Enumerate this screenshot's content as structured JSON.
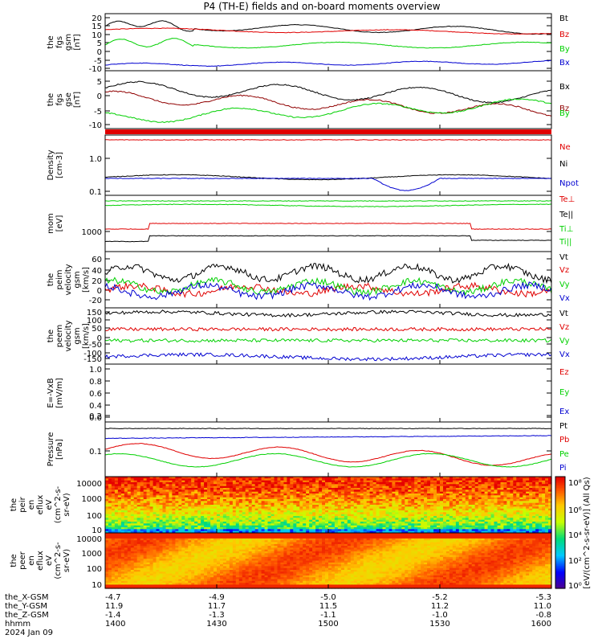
{
  "title": "P4 (TH-E) fields and on-board moments overview",
  "colors": {
    "black": "#000000",
    "red": "#e00000",
    "green": "#00d000",
    "blue": "#0000d0",
    "darkred": "#900000"
  },
  "chart_data": [
    {
      "id": "fgs-gsm",
      "type": "line",
      "ylabel": [
        "the",
        "fgs",
        "gsm",
        "[nT]"
      ],
      "yticks": [
        "20",
        "15",
        "10",
        "5",
        "0",
        "-5",
        "-10"
      ],
      "ylim": [
        -12,
        22
      ],
      "series": [
        {
          "name": "Bt",
          "color": "#000000",
          "base": 15,
          "amp": 3
        },
        {
          "name": "Bz",
          "color": "#e00000",
          "base": 12,
          "amp": 2
        },
        {
          "name": "By",
          "color": "#00d000",
          "base": 3,
          "amp": 3
        },
        {
          "name": "Bx",
          "color": "#0000d0",
          "base": -9,
          "amp": 1.5
        }
      ]
    },
    {
      "id": "fgs-gse",
      "type": "line",
      "ylabel": [
        "the",
        "fgs",
        "gse",
        "[nT]"
      ],
      "yticks": [
        "5",
        "0",
        "-5",
        "-10"
      ],
      "ylim": [
        -13,
        10
      ],
      "series": [
        {
          "name": "Bx",
          "color": "#000000",
          "base": 2,
          "amp": 4
        },
        {
          "name": "Bz",
          "color": "#900000",
          "base": -1,
          "amp": 3
        },
        {
          "name": "By",
          "color": "#00d000",
          "base": -8,
          "amp": 3
        }
      ]
    },
    {
      "id": "density",
      "type": "line",
      "ylabel": [
        "Density",
        "[cm-3]"
      ],
      "yticks": [
        "1.0",
        "0.1"
      ],
      "series": [
        {
          "name": "Ne",
          "color": "#e00000"
        },
        {
          "name": "Ni",
          "color": "#000000"
        },
        {
          "name": "Npot",
          "color": "#0000d0"
        }
      ]
    },
    {
      "id": "temperature",
      "type": "line",
      "ylabel": [
        "mom",
        "[eV]"
      ],
      "yticks": [
        "1000"
      ],
      "series": [
        {
          "name": "Te⊥",
          "color": "#e00000"
        },
        {
          "name": "Te||",
          "color": "#000000"
        },
        {
          "name": "Ti⊥",
          "color": "#00d000"
        },
        {
          "name": "Ti||",
          "color": "#00d000"
        }
      ]
    },
    {
      "id": "ion-velocity",
      "type": "line",
      "ylabel": [
        "the",
        "peim",
        "velocity",
        "gsm",
        "[km/s]"
      ],
      "yticks": [
        "60",
        "40",
        "20",
        "0",
        "-20"
      ],
      "ylim": [
        -25,
        70
      ],
      "series": [
        {
          "name": "Vt",
          "color": "#000000",
          "base": 35,
          "amp": 15
        },
        {
          "name": "Vz",
          "color": "#e00000",
          "base": 10,
          "amp": 10
        },
        {
          "name": "Vy",
          "color": "#00d000",
          "base": 12,
          "amp": 12
        },
        {
          "name": "Vx",
          "color": "#0000d0",
          "base": 8,
          "amp": 10
        }
      ]
    },
    {
      "id": "electron-velocity",
      "type": "line",
      "ylabel": [
        "the",
        "peem",
        "velocity",
        "gsm",
        "[km/s]"
      ],
      "yticks": [
        "150",
        "100",
        "50",
        "0",
        "-50",
        "-100",
        "-150"
      ],
      "ylim": [
        -170,
        175
      ],
      "series": [
        {
          "name": "Vt",
          "color": "#000000",
          "base": 140,
          "amp": 15
        },
        {
          "name": "Vz",
          "color": "#e00000",
          "base": 45,
          "amp": 10
        },
        {
          "name": "Vy",
          "color": "#00d000",
          "base": -25,
          "amp": 10
        },
        {
          "name": "Vx",
          "color": "#0000d0",
          "base": -120,
          "amp": 20
        }
      ]
    },
    {
      "id": "efield",
      "type": "line",
      "ylabel": [
        "E=-VxB",
        "[mV/m]"
      ],
      "yticks": [
        "1.0",
        "0.8",
        "0.6",
        "0.4",
        "0.2",
        "0.0"
      ],
      "series": [
        {
          "name": "Ez",
          "color": "#e00000"
        },
        {
          "name": "Ey",
          "color": "#00d000"
        },
        {
          "name": "Ex",
          "color": "#0000d0"
        }
      ]
    },
    {
      "id": "pressure",
      "type": "line",
      "ylabel": [
        "Pressure",
        "[nPa]"
      ],
      "yticks": [
        "0.1"
      ],
      "series": [
        {
          "name": "Pt",
          "color": "#000000"
        },
        {
          "name": "Pb",
          "color": "#e00000"
        },
        {
          "name": "Pe",
          "color": "#00d000"
        },
        {
          "name": "Pi",
          "color": "#0000d0"
        }
      ]
    },
    {
      "id": "ion-spectrogram",
      "type": "heatmap",
      "ylabel": [
        "the",
        "peir",
        "en",
        "eflux",
        "eV",
        "(cm^2-s-",
        "sr-eV)"
      ],
      "yticks": [
        "10000",
        "1000",
        "100",
        "10"
      ]
    },
    {
      "id": "electron-spectrogram",
      "type": "heatmap",
      "ylabel": [
        "the",
        "peer",
        "en",
        "eflux",
        "eV",
        "(cm^2-s-",
        "sr-eV)"
      ],
      "yticks": [
        "10000",
        "1000",
        "100",
        "10"
      ]
    }
  ],
  "colorbar": {
    "label": "[eV/(cm^2-s-sr-eV)] (All Qs)",
    "ticks": [
      "10⁸",
      "10⁶",
      "10⁴",
      "10²",
      "10⁰"
    ]
  },
  "footer": {
    "rows": [
      {
        "label": "the_X-GSM",
        "values": [
          "-4.7",
          "-4.9",
          "-5.0",
          "-5.2",
          "-5.3"
        ]
      },
      {
        "label": "the_Y-GSM",
        "values": [
          "11.9",
          "11.7",
          "11.5",
          "11.2",
          "11.0"
        ]
      },
      {
        "label": "the_Z-GSM",
        "values": [
          "-1.4",
          "-1.3",
          "-1.1",
          "-1.0",
          "-0.8"
        ]
      },
      {
        "label": "hhmm",
        "values": [
          "1400",
          "1430",
          "1500",
          "1530",
          "1600"
        ]
      }
    ],
    "date": "2024 Jan 09"
  }
}
